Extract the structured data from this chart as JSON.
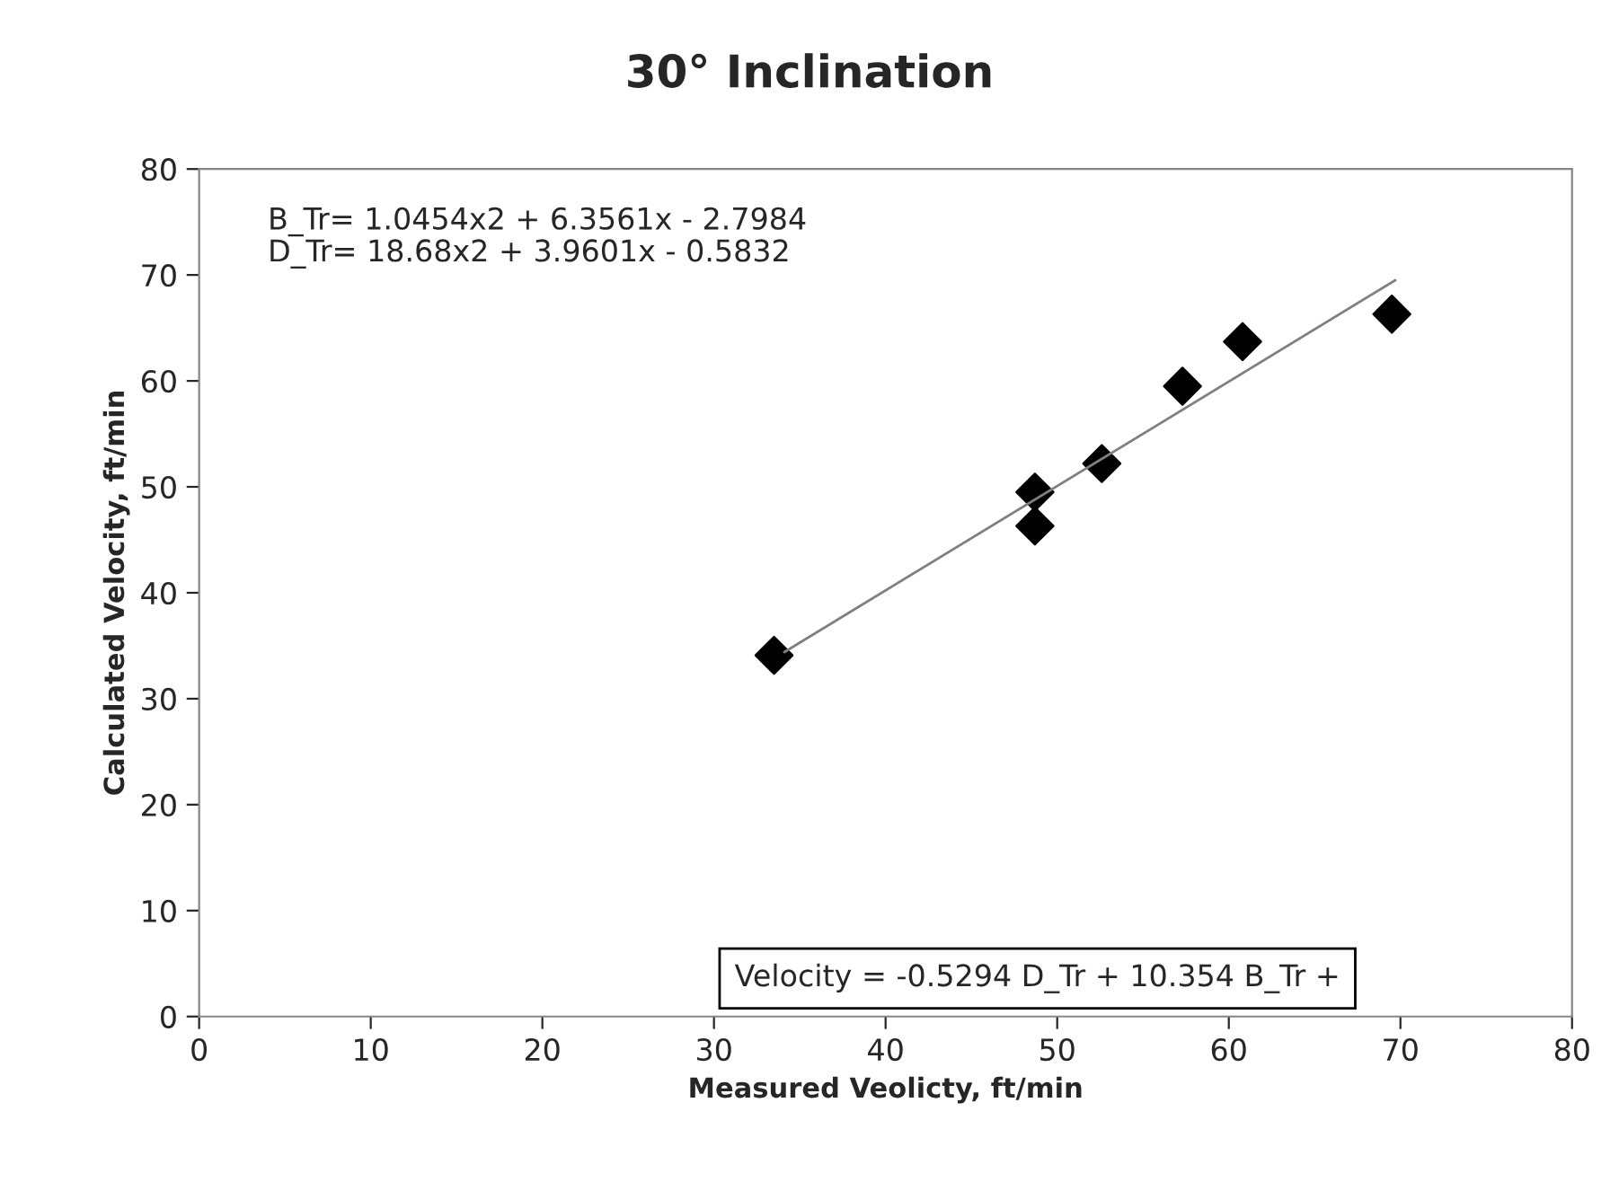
{
  "chart_data": {
    "type": "scatter",
    "title": "30° Inclination",
    "xlabel": "Measured Veolicty, ft/min",
    "ylabel": "Calculated Velocity, ft/min",
    "series": [
      {
        "color": "#000000",
        "marker": "diamond",
        "x": [
          33.5,
          48.7,
          48.7,
          52.6,
          57.3,
          60.8,
          69.5
        ],
        "values": [
          34.1,
          49.5,
          46.3,
          52.2,
          59.5,
          63.7,
          66.3
        ]
      },
      {
        "type": "line",
        "color": "#808080",
        "marker": "none",
        "line_style": "solid",
        "x": [
          34.1,
          69.7
        ],
        "values": [
          34.4,
          69.5
        ]
      }
    ],
    "annotations": [
      "B_Tr= 1.0454x2 + 6.3561x - 2.7984",
      "D_Tr= 18.68x2 + 3.9601x - 0.5832",
      "Velocity = -0.5294 D_Tr + 10.354 B_Tr +"
    ],
    "xlim": [
      0,
      80
    ],
    "xticks": [
      0,
      10,
      20,
      30,
      40,
      50,
      60,
      70,
      80
    ],
    "ylim": [
      0,
      80
    ],
    "yticks": [
      0,
      10,
      20,
      30,
      40,
      50,
      60,
      70,
      80
    ],
    "grid": false,
    "legend": false
  }
}
